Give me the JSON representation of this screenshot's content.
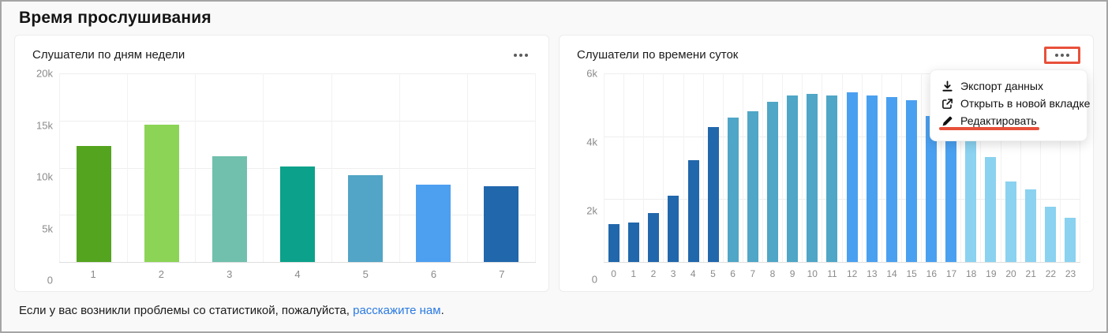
{
  "page": {
    "title": "Время прослушивания"
  },
  "cards": [
    {
      "more_button": "more-options"
    },
    {
      "more_button": "more-options-highlighted"
    }
  ],
  "menu": {
    "items": [
      {
        "icon": "download-icon",
        "label": "Экспорт данных"
      },
      {
        "icon": "open-in-new-tab-icon",
        "label": "Открыть в новой вкладке"
      },
      {
        "icon": "pencil-icon",
        "label": "Редактировать",
        "annotated": true
      }
    ],
    "annotation_color": "#e8503a"
  },
  "colors": {
    "link": "#2a7ae2",
    "annotation": "#e8503a",
    "grid": "#eeeeee",
    "axis_text": "#8a8a8a"
  },
  "footer": {
    "prefix": "Если у вас возникли проблемы со статистикой, пожалуйста, ",
    "link_text": "расскажите нам",
    "suffix": "."
  },
  "chart_data": [
    {
      "type": "bar",
      "title": "Слушатели по дням недели",
      "categories": [
        "1",
        "2",
        "3",
        "4",
        "5",
        "6",
        "7"
      ],
      "values": [
        12300,
        14600,
        11200,
        10100,
        9200,
        8200,
        8000
      ],
      "bar_colors": [
        "#54a41f",
        "#8bd455",
        "#70c0ad",
        "#0ba18a",
        "#52a5c6",
        "#4d9ff0",
        "#2167ac"
      ],
      "xlabel": "",
      "ylabel": "",
      "ylim": [
        0,
        20000
      ],
      "yticks": [
        {
          "label": "20k",
          "value": 20000
        },
        {
          "label": "15k",
          "value": 15000
        },
        {
          "label": "10k",
          "value": 10000
        },
        {
          "label": "5k",
          "value": 5000
        },
        {
          "label": "0",
          "value": 0
        }
      ],
      "grid": true,
      "legend": false
    },
    {
      "type": "bar",
      "title": "Слушатели по времени суток",
      "categories": [
        "0",
        "1",
        "2",
        "3",
        "4",
        "5",
        "6",
        "7",
        "8",
        "9",
        "10",
        "11",
        "12",
        "13",
        "14",
        "15",
        "16",
        "17",
        "18",
        "19",
        "20",
        "21",
        "22",
        "23"
      ],
      "values": [
        1200,
        1250,
        1550,
        2100,
        3250,
        4300,
        4600,
        4800,
        5100,
        5300,
        5350,
        5300,
        5400,
        5300,
        5250,
        5150,
        4650,
        4250,
        3850,
        3350,
        2550,
        2300,
        1750,
        1400
      ],
      "bar_colors": [
        "#2167ac",
        "#2167ac",
        "#2167ac",
        "#2167ac",
        "#2167ac",
        "#2167ac",
        "#4fa6c6",
        "#4fa6c6",
        "#4fa6c6",
        "#4fa6c6",
        "#4fa6c6",
        "#4fa6c6",
        "#4aa0f0",
        "#4aa0f0",
        "#4aa0f0",
        "#4aa0f0",
        "#4aa0f0",
        "#4aa0f0",
        "#8ad2f0",
        "#8ad2f0",
        "#8ad2f0",
        "#8ad2f0",
        "#8ad2f0",
        "#8ad2f0"
      ],
      "xlabel": "",
      "ylabel": "",
      "ylim": [
        0,
        6000
      ],
      "yticks": [
        {
          "label": "6k",
          "value": 6000
        },
        {
          "label": "4k",
          "value": 4000
        },
        {
          "label": "2k",
          "value": 2000
        },
        {
          "label": "0",
          "value": 0
        }
      ],
      "grid": true,
      "legend": false
    }
  ]
}
